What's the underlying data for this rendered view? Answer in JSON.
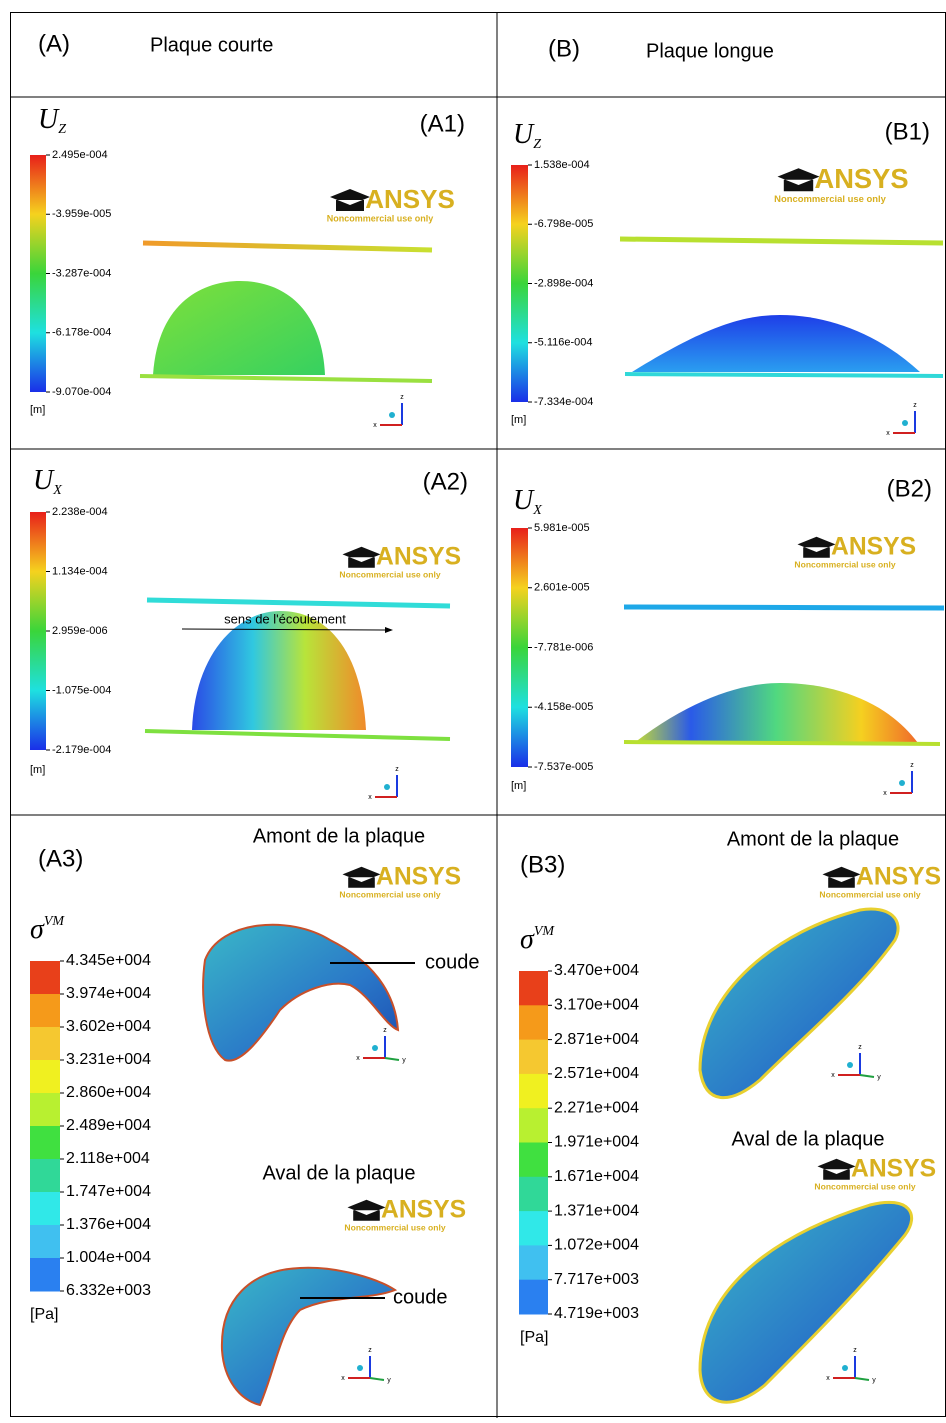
{
  "header": {
    "left": {
      "label": "(A)",
      "title": "Plaque courte"
    },
    "right": {
      "label": "(B)",
      "title": "Plaque longue"
    }
  },
  "panels": {
    "A1": {
      "id": "(A1)",
      "symbol": "U",
      "index": "Z",
      "unit": "[m]",
      "ticks": [
        "2.495e-004",
        "-3.959e-005",
        "-3.287e-004",
        "-6.178e-004",
        "-9.070e-004"
      ]
    },
    "B1": {
      "id": "(B1)",
      "symbol": "U",
      "index": "Z",
      "unit": "[m]",
      "ticks": [
        "1.538e-004",
        "-6.798e-005",
        "-2.898e-004",
        "-5.116e-004",
        "-7.334e-004"
      ]
    },
    "A2": {
      "id": "(A2)",
      "symbol": "U",
      "index": "X",
      "unit": "[m]",
      "ticks": [
        "2.238e-004",
        "1.134e-004",
        "2.959e-006",
        "-1.075e-004",
        "-2.179e-004"
      ]
    },
    "B2": {
      "id": "(B2)",
      "symbol": "U",
      "index": "X",
      "unit": "[m]",
      "ticks": [
        "5.981e-005",
        "2.601e-005",
        "-7.781e-006",
        "-4.158e-005",
        "-7.537e-005"
      ]
    },
    "A3": {
      "id": "(A3)",
      "symbol": "σ",
      "index": "VM",
      "unit": "[Pa]",
      "ticks": [
        "4.345e+004",
        "3.974e+004",
        "3.602e+004",
        "3.231e+004",
        "2.860e+004",
        "2.489e+004",
        "2.118e+004",
        "1.747e+004",
        "1.376e+004",
        "1.004e+004",
        "6.332e+003"
      ]
    },
    "B3": {
      "id": "(B3)",
      "symbol": "σ",
      "index": "VM",
      "unit": "[Pa]",
      "ticks": [
        "3.470e+004",
        "3.170e+004",
        "2.871e+004",
        "2.571e+004",
        "2.271e+004",
        "1.971e+004",
        "1.671e+004",
        "1.371e+004",
        "1.072e+004",
        "7.717e+003",
        "4.719e+003"
      ]
    }
  },
  "annotations": {
    "flow": "sens de l'écoulement",
    "upstream": "Amont de la plaque",
    "downstream": "Aval de la plaque",
    "elbow": "coude"
  },
  "watermark": {
    "brand": "ANSYS",
    "note": "Noncommercial use only"
  },
  "triad": [
    "z",
    "x",
    "y"
  ]
}
